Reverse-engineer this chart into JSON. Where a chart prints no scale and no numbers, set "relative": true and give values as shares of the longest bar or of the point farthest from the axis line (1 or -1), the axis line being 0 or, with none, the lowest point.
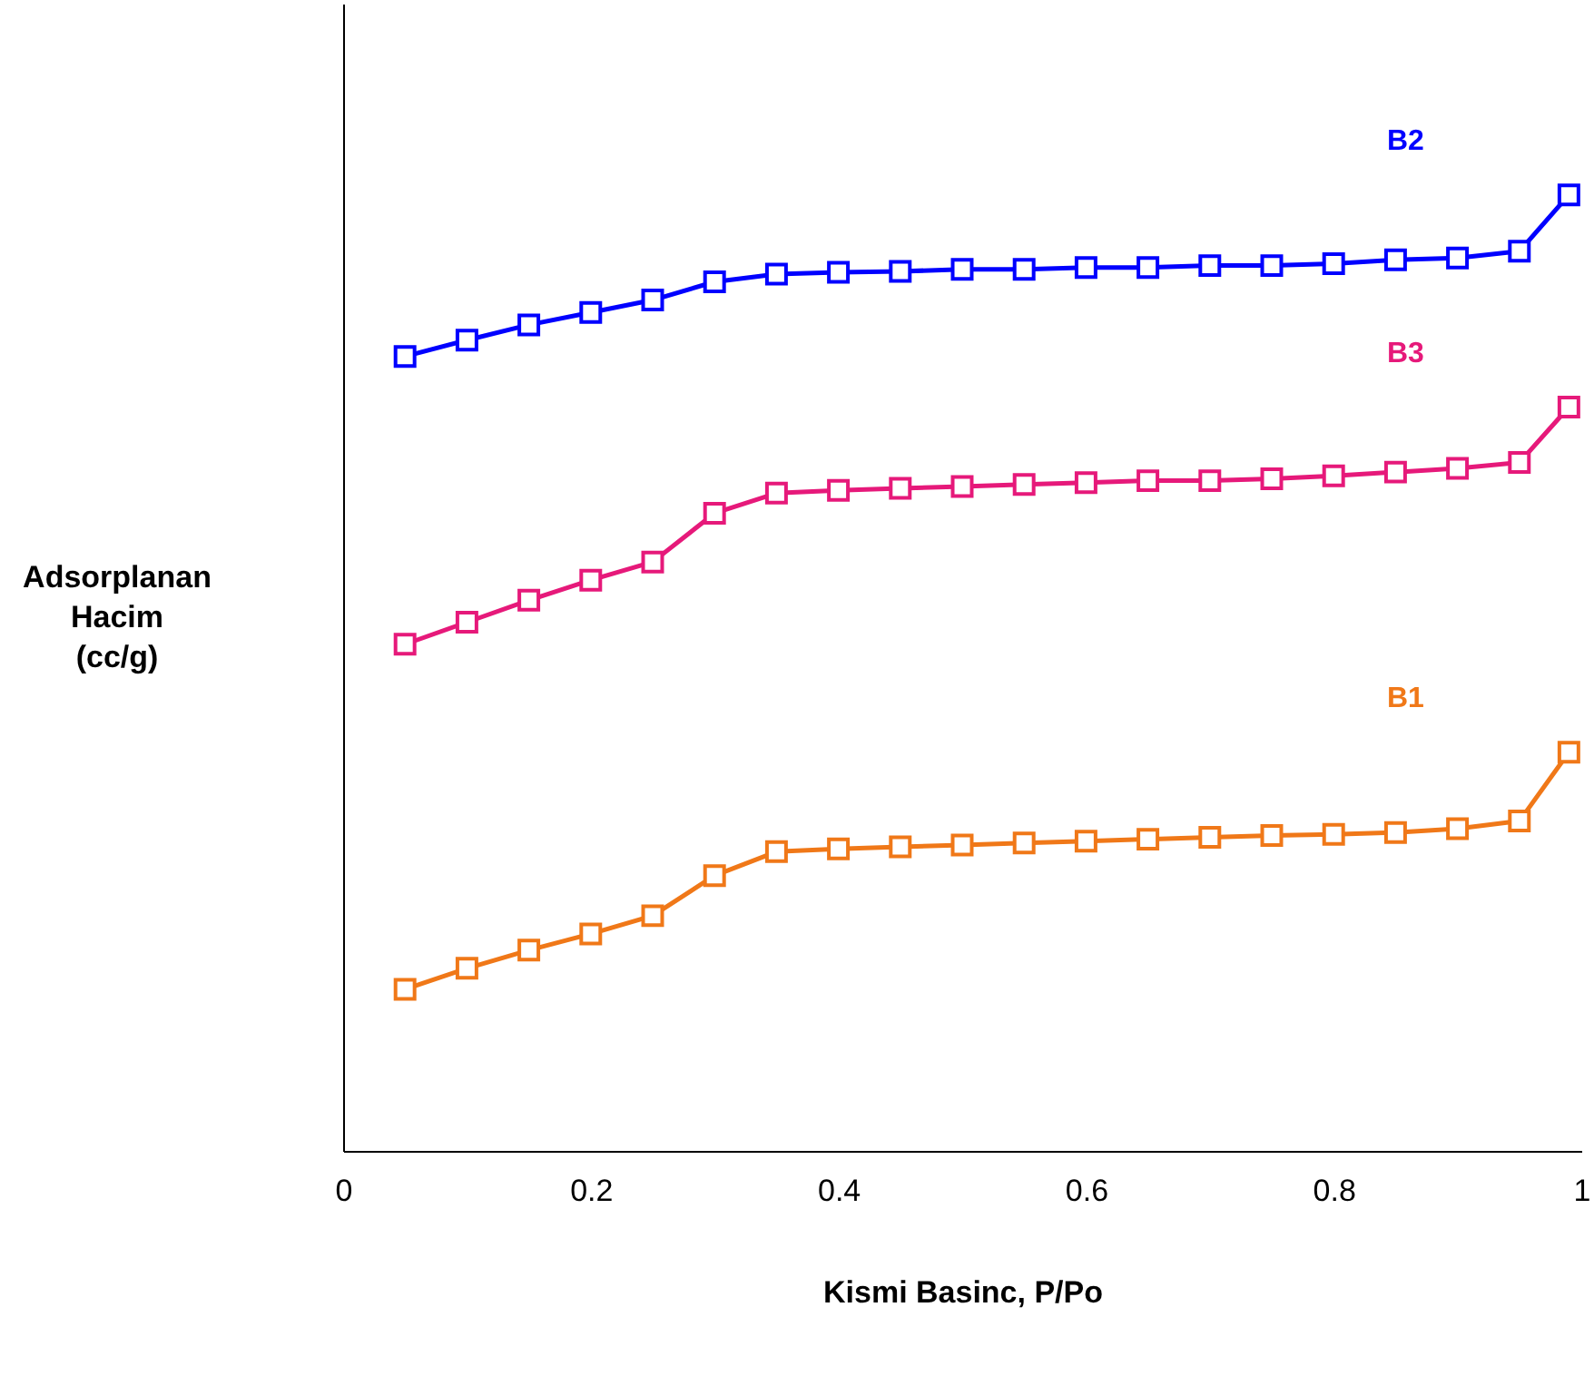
{
  "chart_data": {
    "type": "line",
    "xlabel": "Kismi Basinc, P/Po",
    "ylabel": "Adsorplanan Hacim (cc/g)",
    "relative": true,
    "x": [
      0.05,
      0.1,
      0.15,
      0.2,
      0.25,
      0.3,
      0.35,
      0.4,
      0.45,
      0.5,
      0.55,
      0.6,
      0.65,
      0.7,
      0.75,
      0.8,
      0.85,
      0.9,
      0.95,
      0.99
    ],
    "series": [
      {
        "name": "B2",
        "color": "#0000ff",
        "values": [
          0.831,
          0.848,
          0.864,
          0.877,
          0.89,
          0.909,
          0.917,
          0.919,
          0.92,
          0.922,
          0.922,
          0.924,
          0.924,
          0.926,
          0.926,
          0.928,
          0.932,
          0.934,
          0.941,
          1
        ]
      },
      {
        "name": "B3",
        "color": "#e6197a",
        "values": [
          0.53,
          0.553,
          0.576,
          0.597,
          0.616,
          0.667,
          0.688,
          0.691,
          0.693,
          0.695,
          0.697,
          0.699,
          0.701,
          0.701,
          0.703,
          0.706,
          0.71,
          0.714,
          0.72,
          0.778
        ]
      },
      {
        "name": "B1",
        "color": "#f07818",
        "values": [
          0.169,
          0.191,
          0.21,
          0.227,
          0.246,
          0.288,
          0.313,
          0.316,
          0.318,
          0.32,
          0.322,
          0.324,
          0.326,
          0.328,
          0.33,
          0.331,
          0.333,
          0.337,
          0.345,
          0.417
        ]
      }
    ],
    "xlim": [
      0,
      1
    ],
    "xticks": [
      0,
      0.2,
      0.4,
      0.6,
      0.8,
      1
    ],
    "grid": false,
    "legend": false,
    "marker": "square",
    "line_style": "solid"
  }
}
